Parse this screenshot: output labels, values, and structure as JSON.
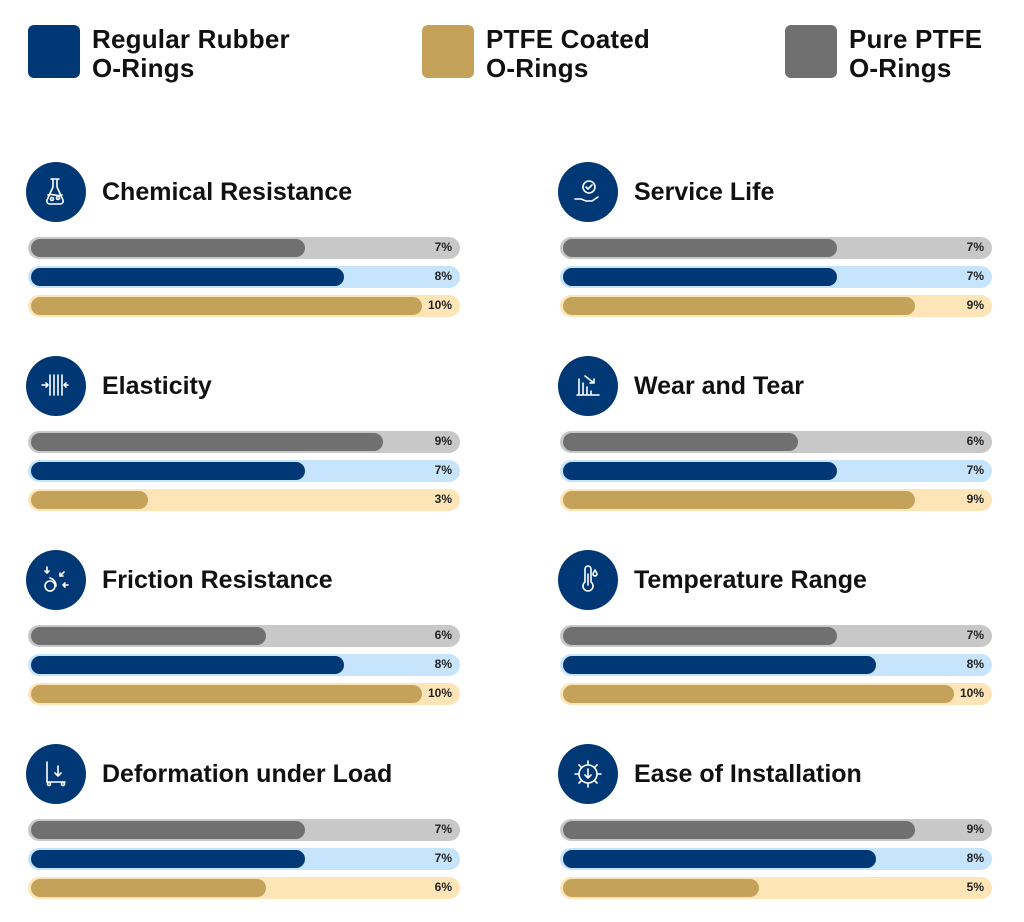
{
  "chart_data": {
    "type": "bar",
    "orientation": "horizontal",
    "value_unit": "%",
    "xlim": [
      0,
      10
    ],
    "legend_placement": "top",
    "series": [
      {
        "name": "Regular Rubber O-Rings",
        "color": "#003876",
        "track_color": "#c6e4fb"
      },
      {
        "name": "PTFE Coated O-Rings",
        "color": "#c4a25a",
        "track_color": "#fde5b8"
      },
      {
        "name": "Pure PTFE O-Rings",
        "color": "#707070",
        "track_color": "#c8c8c8"
      }
    ],
    "bar_order": [
      "Pure PTFE O-Rings",
      "Regular Rubber O-Rings",
      "PTFE Coated O-Rings"
    ],
    "panels": [
      {
        "title": "Chemical Resistance",
        "icon": "flask-icon",
        "values": {
          "pure": 7,
          "regular": 8,
          "coated": 10
        },
        "labels": {
          "pure": "7%",
          "regular": "8%",
          "coated": "10%"
        }
      },
      {
        "title": "Service Life",
        "icon": "hand-gear-icon",
        "values": {
          "pure": 7,
          "regular": 7,
          "coated": 9
        },
        "labels": {
          "pure": "7%",
          "regular": "7%",
          "coated": "9%"
        }
      },
      {
        "title": "Elasticity",
        "icon": "compress-icon",
        "values": {
          "pure": 9,
          "regular": 7,
          "coated": 3
        },
        "labels": {
          "pure": "9%",
          "regular": "7%",
          "coated": "3%"
        }
      },
      {
        "title": "Wear and Tear",
        "icon": "declining-bars-icon",
        "values": {
          "pure": 6,
          "regular": 7,
          "coated": 9
        },
        "labels": {
          "pure": "6%",
          "regular": "7%",
          "coated": "9%"
        }
      },
      {
        "title": "Friction Resistance",
        "icon": "friction-icon",
        "values": {
          "pure": 6,
          "regular": 8,
          "coated": 10
        },
        "labels": {
          "pure": "6%",
          "regular": "8%",
          "coated": "10%"
        }
      },
      {
        "title": "Temperature Range",
        "icon": "thermometer-icon",
        "values": {
          "pure": 7,
          "regular": 8,
          "coated": 10
        },
        "labels": {
          "pure": "7%",
          "regular": "8%",
          "coated": "10%"
        }
      },
      {
        "title": "Deformation under Load",
        "icon": "load-icon",
        "values": {
          "pure": 7,
          "regular": 7,
          "coated": 6
        },
        "labels": {
          "pure": "7%",
          "regular": "7%",
          "coated": "6%"
        }
      },
      {
        "title": "Ease of Installation",
        "icon": "gear-download-icon",
        "values": {
          "pure": 9,
          "regular": 8,
          "coated": 5
        },
        "labels": {
          "pure": "9%",
          "regular": "8%",
          "coated": "5%"
        }
      }
    ]
  }
}
